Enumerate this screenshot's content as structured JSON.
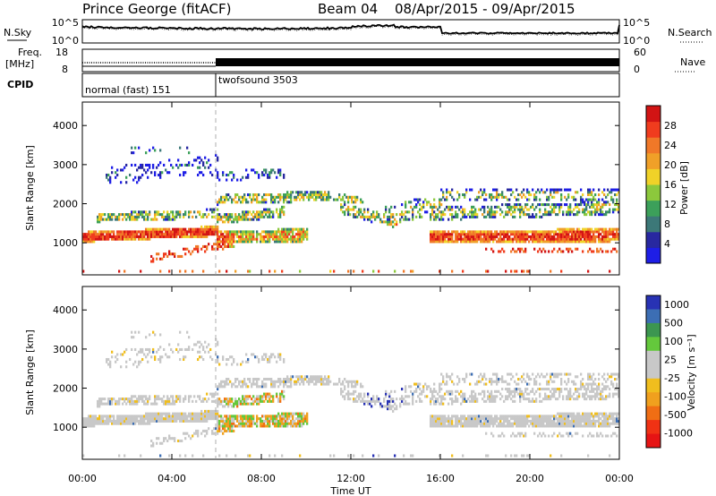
{
  "header": {
    "station": "Prince George (fitACF)",
    "beam": "Beam 04",
    "dates": "08/Apr/2015 - 09/Apr/2015"
  },
  "top_panels": {
    "nsky_label": "N.Sky",
    "nsky_ticks": [
      "10^5",
      "10^0"
    ],
    "nsearch_label": "N.Search",
    "freq_label_1": "Freq.",
    "freq_label_2": "[MHz]",
    "freq_ticks": [
      "18",
      "8"
    ],
    "nave_ticks": [
      "60",
      "0"
    ],
    "nave_label": "Nave",
    "cpid_label": "CPID",
    "cpid_segments": [
      {
        "name": "normal (fast) 151",
        "start_h": 0,
        "end_h": 6
      },
      {
        "name": "twofsound 3503",
        "start_h": 6,
        "end_h": 24
      }
    ]
  },
  "chart_data": [
    {
      "type": "heatmap",
      "name": "power",
      "ylabel": "Slant Range [km]",
      "xlabel": "Time UT",
      "ylim": [
        180,
        4600
      ],
      "yticks": [
        "1000",
        "2000",
        "3000",
        "4000"
      ],
      "xticks": [
        "00:00",
        "04:00",
        "08:00",
        "12:00",
        "16:00",
        "20:00",
        "00:00"
      ],
      "x_range_hours": [
        0,
        24
      ],
      "colorbar_label": "Power [dB]",
      "colorbar_ticks": [
        "4",
        "8",
        "12",
        "16",
        "20",
        "24",
        "28"
      ],
      "colorbar_colors": [
        "#1e1ee6",
        "#2828a0",
        "#3c7878",
        "#3ca05a",
        "#8cc83c",
        "#f0d228",
        "#f0a028",
        "#f07828",
        "#f03c1e",
        "#d21414"
      ]
    },
    {
      "type": "heatmap",
      "name": "velocity",
      "ylabel": "Slant Range [km]",
      "xlabel": "Time UT",
      "ylim": [
        180,
        4600
      ],
      "yticks": [
        "1000",
        "2000",
        "3000",
        "4000"
      ],
      "xticks": [
        "00:00",
        "04:00",
        "08:00",
        "12:00",
        "16:00",
        "20:00",
        "00:00"
      ],
      "x_range_hours": [
        0,
        24
      ],
      "colorbar_label": "Velocity [m s⁻¹]",
      "colorbar_ticks": [
        "1000",
        "500",
        "100",
        "25",
        "-25",
        "-100",
        "-500",
        "-1000"
      ],
      "colorbar_colors": [
        "#2832b4",
        "#3c6eb4",
        "#3c9650",
        "#64c83c",
        "#c8c8c8",
        "#c8c8c8",
        "#f0be1e",
        "#f0a01e",
        "#f06e14",
        "#f03214",
        "#e61414"
      ]
    }
  ]
}
